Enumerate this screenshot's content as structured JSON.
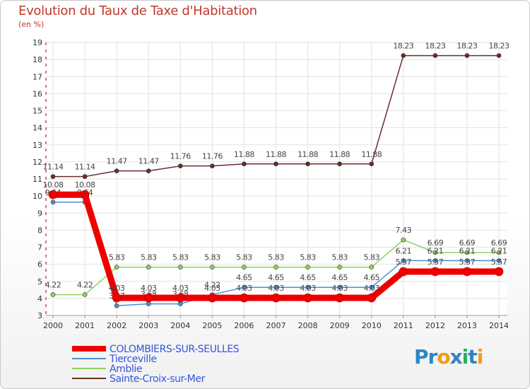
{
  "chart_data": {
    "type": "line",
    "title": "Evolution du Taux de Taxe d'Habitation",
    "subtitle": "(en %)",
    "ylim": [
      3,
      19
    ],
    "yticks": [
      "3",
      "4",
      "5",
      "6",
      "7",
      "8",
      "9",
      "10",
      "11",
      "12",
      "13",
      "14",
      "15",
      "16",
      "17",
      "18",
      "19"
    ],
    "categories": [
      "2000",
      "2001",
      "2002",
      "2003",
      "2004",
      "2005",
      "2006",
      "2007",
      "2008",
      "2009",
      "2010",
      "2011",
      "2012",
      "2013",
      "2014"
    ],
    "series": [
      {
        "name": "Sainte-Croix-sur-Mer",
        "color": "#6e2b2b",
        "values": [
          11.14,
          11.14,
          11.47,
          11.47,
          11.76,
          11.76,
          11.88,
          11.88,
          11.88,
          11.88,
          11.88,
          18.23,
          18.23,
          18.23,
          18.23
        ],
        "labels": [
          "11.14",
          "11.14",
          "11.47",
          "11.47",
          "11.76",
          "11.76",
          "11.88",
          "11.88",
          "11.88",
          "11.88",
          "11.88",
          "18.23",
          "18.23",
          "18.23",
          "18.23"
        ]
      },
      {
        "name": "Amblie",
        "color": "#90d25e",
        "values": [
          4.22,
          4.22,
          5.83,
          5.83,
          5.83,
          5.83,
          5.83,
          5.83,
          5.83,
          5.83,
          5.83,
          7.43,
          6.69,
          6.69,
          6.69
        ],
        "labels": [
          "4.22",
          "4.22",
          "5.83",
          "5.83",
          "5.83",
          "5.83",
          "5.83",
          "5.83",
          "5.83",
          "5.83",
          "5.83",
          "7.43",
          "6.69",
          "6.69",
          "6.69"
        ]
      },
      {
        "name": "Tierceville",
        "color": "#4a90d9",
        "values": [
          9.64,
          9.64,
          3.57,
          3.68,
          3.68,
          4.22,
          4.65,
          4.65,
          4.65,
          4.65,
          4.65,
          6.21,
          6.21,
          6.21,
          6.21
        ],
        "labels": [
          "9.64",
          "9.64",
          "3.57",
          "3.68",
          "3.68",
          "4.22",
          "4.65",
          "4.65",
          "4.65",
          "4.65",
          "4.65",
          "6.21",
          "6.21",
          "6.21",
          "6.21"
        ]
      },
      {
        "name": "COLOMBIERS-SUR-SEULLES",
        "color": "#ee0000",
        "values": [
          10.08,
          10.08,
          4.03,
          4.03,
          4.03,
          4.03,
          4.03,
          4.03,
          4.03,
          4.03,
          4.03,
          5.57,
          5.57,
          5.57,
          5.57
        ],
        "labels": [
          "10.08",
          "10.08",
          "4.03",
          "4.03",
          "4.03",
          "4.03",
          "4.03",
          "4.03",
          "4.03",
          "4.03",
          "4.03",
          "5.57",
          "5.57",
          "5.57",
          "5.57"
        ]
      }
    ],
    "legend": [
      "COLOMBIERS-SUR-SEULLES",
      "Tierceville",
      "Amblie",
      "Sainte-Croix-sur-Mer"
    ],
    "legend_position": "bottom-left"
  },
  "brand": {
    "logo_text": "Proxiti",
    "logo_parts": [
      "Pr",
      "o",
      "x",
      "i",
      "t",
      "i"
    ]
  }
}
